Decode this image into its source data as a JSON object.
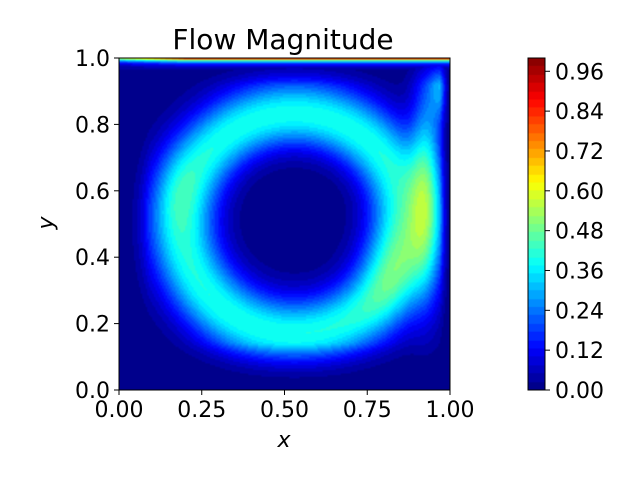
{
  "chart_data": {
    "type": "heatmap",
    "title": "Flow Magnitude",
    "xlabel": "x",
    "ylabel": "y",
    "xlim": [
      0.0,
      1.0
    ],
    "ylim": [
      0.0,
      1.0
    ],
    "x_ticks": [
      "0.00",
      "0.25",
      "0.50",
      "0.75",
      "1.00"
    ],
    "y_ticks": [
      "0.0",
      "0.2",
      "0.4",
      "0.6",
      "0.8",
      "1.0"
    ],
    "colormap": "jet",
    "colorbar": {
      "range": [
        0.0,
        1.0
      ],
      "ticks": [
        "0.00",
        "0.12",
        "0.24",
        "0.36",
        "0.48",
        "0.60",
        "0.72",
        "0.84",
        "0.96"
      ],
      "tick_values": [
        0.0,
        0.12,
        0.24,
        0.36,
        0.48,
        0.6,
        0.72,
        0.84,
        0.96
      ]
    },
    "grid": false,
    "field_description": "lid-driven cavity flow velocity magnitude; vortex centre near (0.53, 0.57)"
  }
}
